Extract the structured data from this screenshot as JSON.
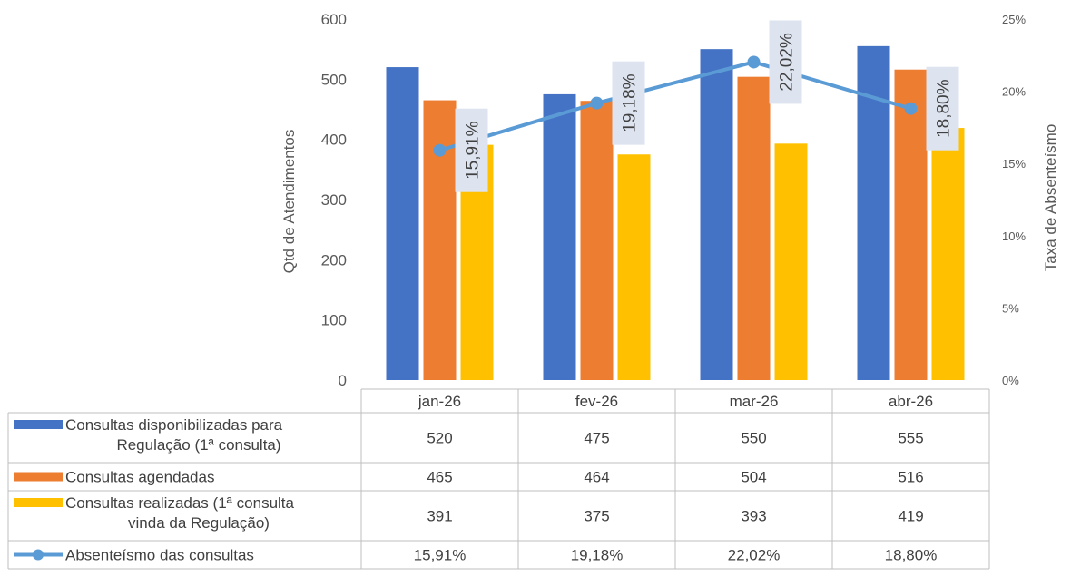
{
  "chart_data": {
    "type": "bar",
    "categories": [
      "jan-26",
      "fev-26",
      "mar-26",
      "abr-26"
    ],
    "series": [
      {
        "name": "Consultas disponibilizadas para Regulação (1ª consulta)",
        "type": "bar",
        "axis": "left",
        "color": "#4472C4",
        "values": [
          520,
          475,
          550,
          555
        ],
        "display": [
          "520",
          "475",
          "550",
          "555"
        ]
      },
      {
        "name": "Consultas agendadas",
        "type": "bar",
        "axis": "left",
        "color": "#ED7D31",
        "values": [
          465,
          464,
          504,
          516
        ],
        "display": [
          "465",
          "464",
          "504",
          "516"
        ]
      },
      {
        "name": "Consultas realizadas (1ª consulta vinda da Regulação)",
        "type": "bar",
        "axis": "left",
        "color": "#FFC000",
        "values": [
          391,
          375,
          393,
          419
        ],
        "display": [
          "391",
          "375",
          "393",
          "419"
        ]
      },
      {
        "name": "Absenteísmo das consultas",
        "type": "line",
        "axis": "right",
        "color": "#5B9BD5",
        "values": [
          15.91,
          19.18,
          22.02,
          18.8
        ],
        "display": [
          "15,91%",
          "19,18%",
          "22,02%",
          "18,80%"
        ]
      }
    ],
    "ylabel": "Qtd de Atendimentos",
    "y2label": "Taxa de Absenteísmo",
    "ylim": [
      0,
      600
    ],
    "y2lim": [
      0,
      25
    ],
    "yticks": [
      "0",
      "100",
      "200",
      "300",
      "400",
      "500",
      "600"
    ],
    "y2ticks": [
      "0%",
      "5%",
      "10%",
      "15%",
      "20%",
      "25%"
    ],
    "legend_placement": "data-table-left",
    "grid": false
  }
}
